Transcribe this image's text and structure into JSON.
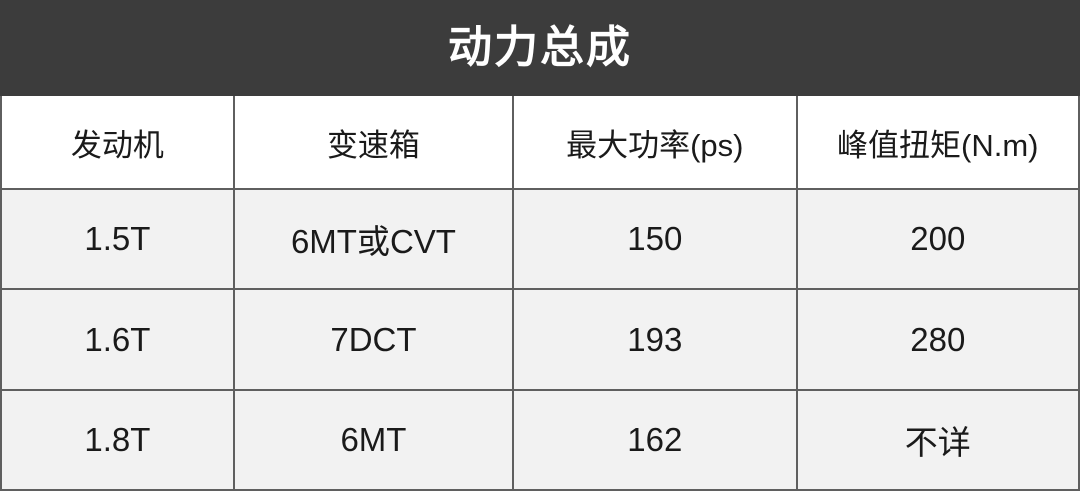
{
  "title": "动力总成",
  "table": {
    "headers": [
      "发动机",
      "变速箱",
      "最大功率(ps)",
      "峰值扭矩(N.m)"
    ],
    "rows": [
      [
        "1.5T",
        "6MT或CVT",
        "150",
        "200"
      ],
      [
        "1.6T",
        "7DCT",
        "193",
        "280"
      ],
      [
        "1.8T",
        "6MT",
        "162",
        "不详"
      ]
    ]
  },
  "colors": {
    "title_bar_bg": "#3c3c3c",
    "title_text": "#ffffff",
    "header_row_bg": "#ffffff",
    "data_row_bg": "#f2f2f2",
    "border": "#5f5f5f",
    "cell_text": "#1a1a1a"
  }
}
